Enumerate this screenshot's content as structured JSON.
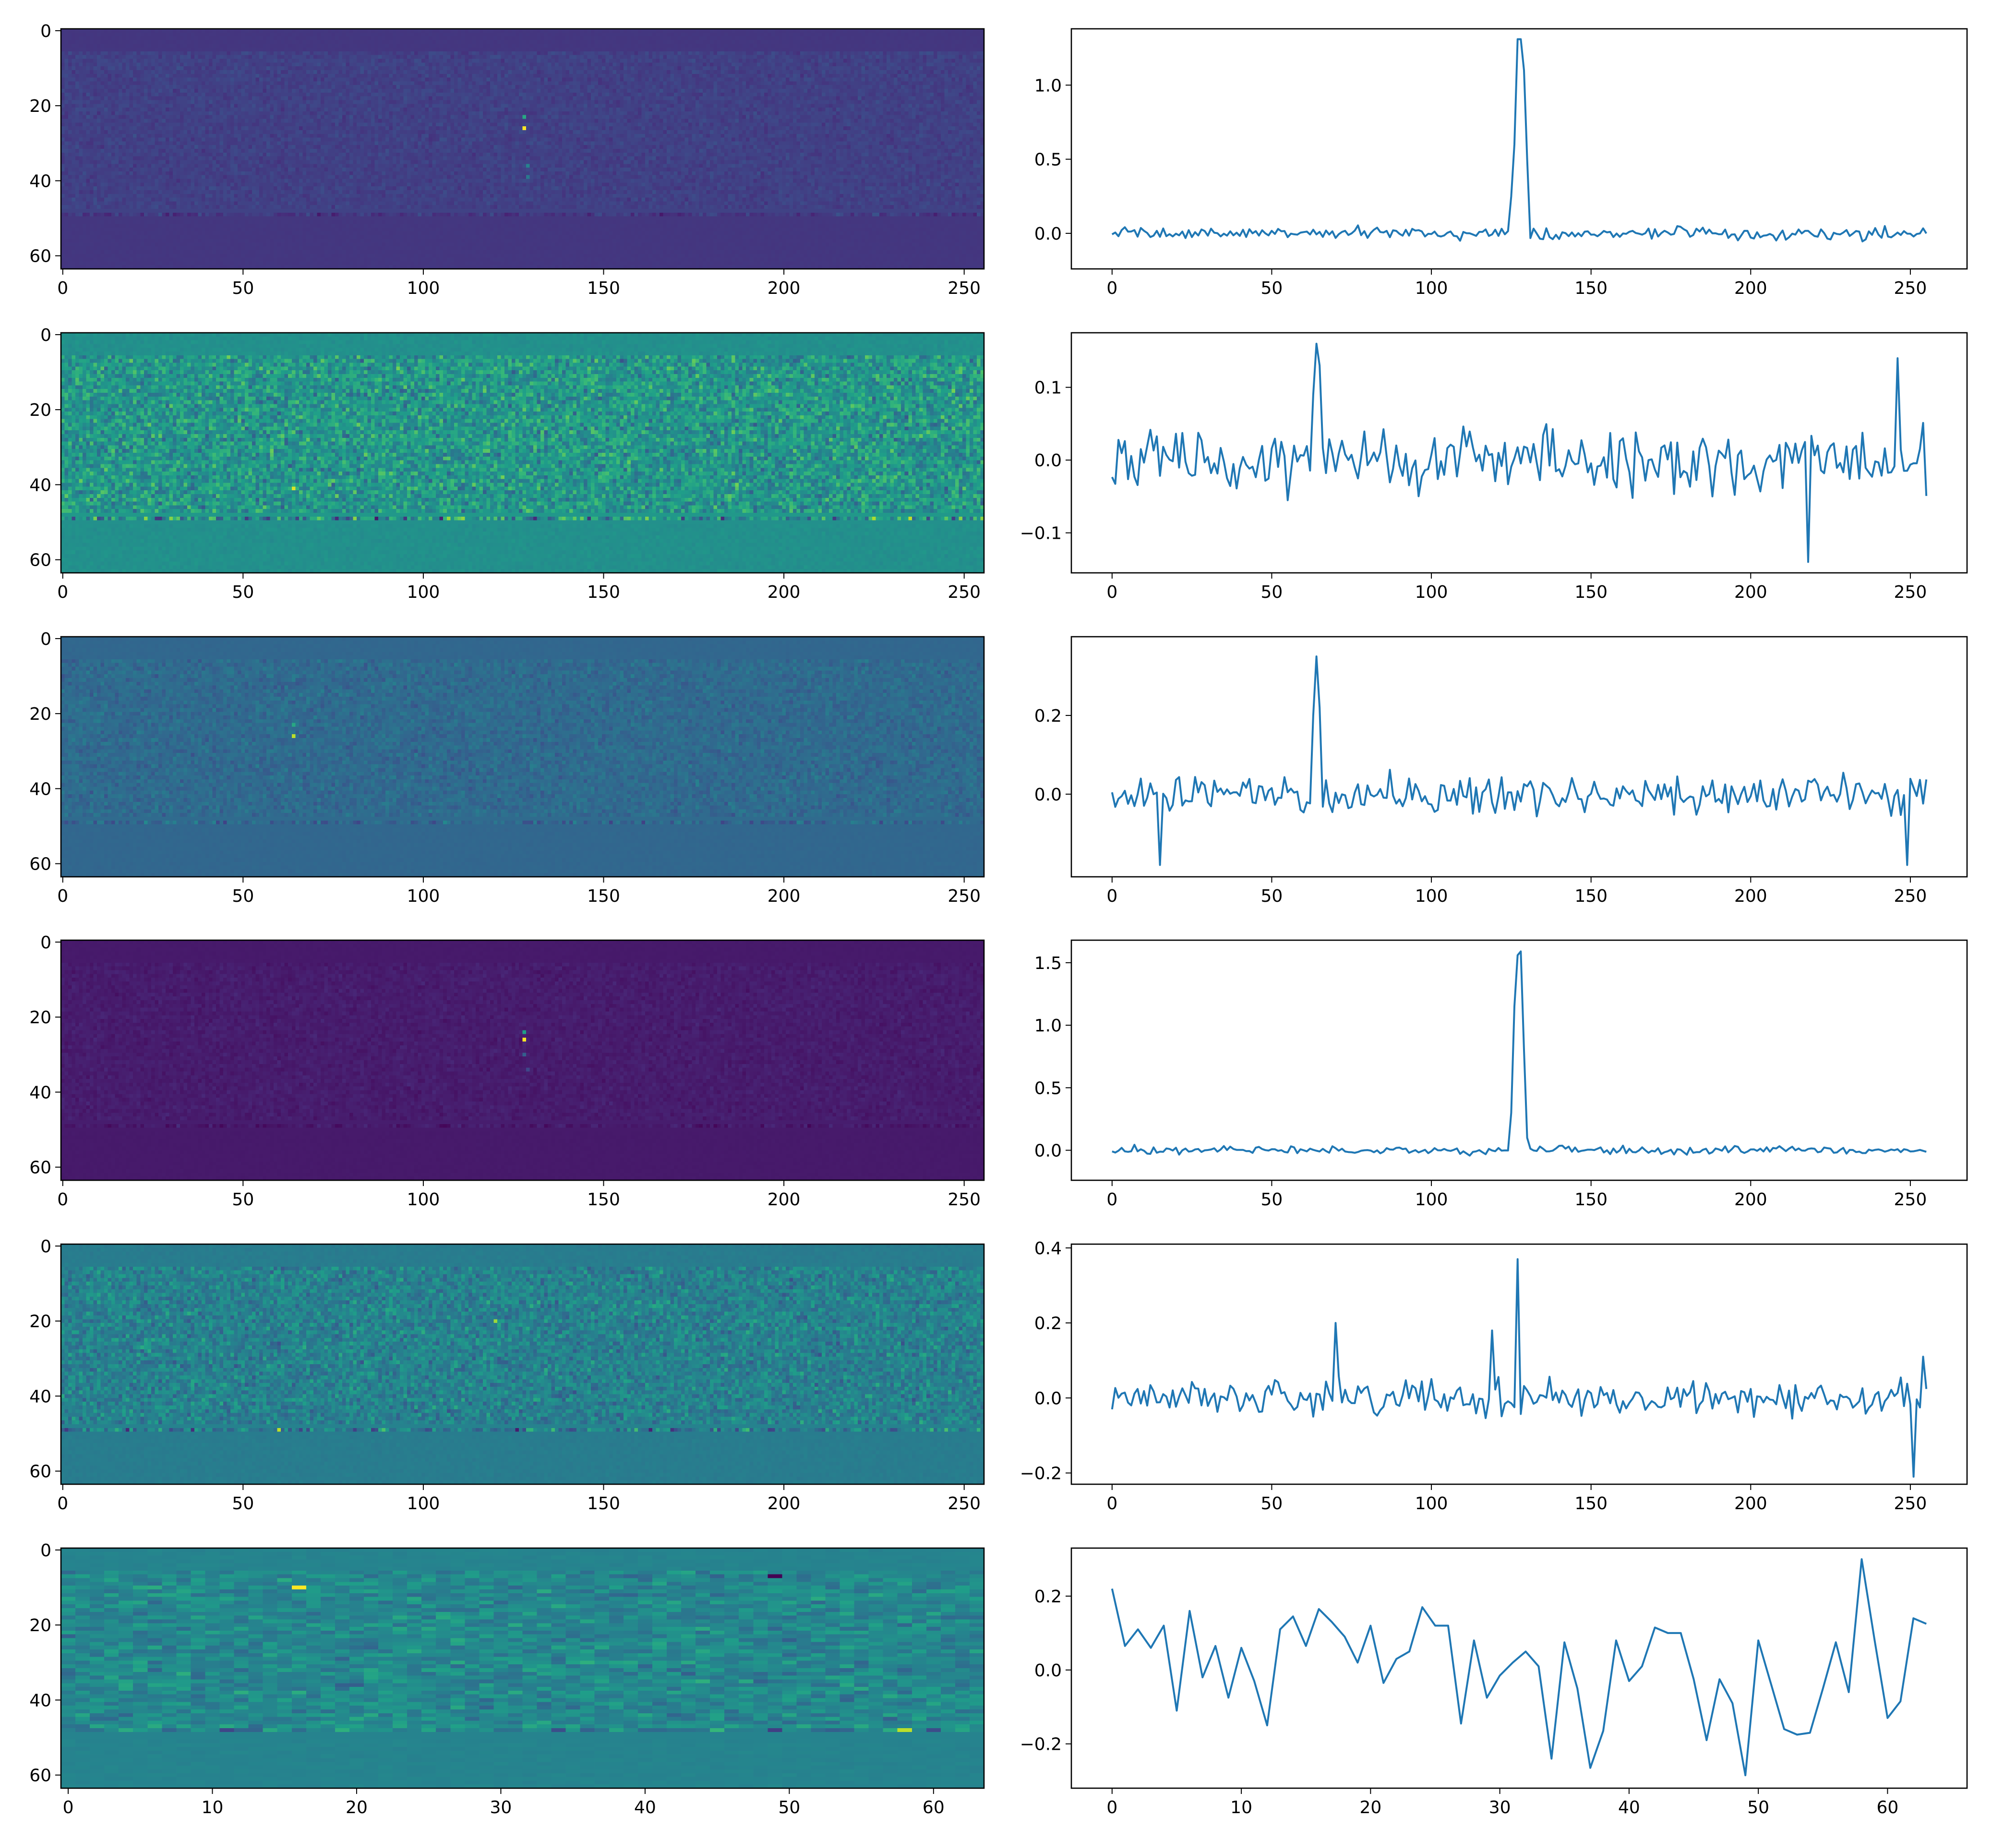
{
  "chart_data": [
    {
      "type": "heatmap",
      "panel": "heatmap",
      "row": 0,
      "colormap": "viridis",
      "xlim": [
        -0.5,
        255.5
      ],
      "ylim": [
        63.5,
        -0.5
      ],
      "xticks": [
        0,
        50,
        100,
        150,
        200,
        250
      ],
      "xtick_labels": [
        "0",
        "50",
        "100",
        "150",
        "200",
        "250"
      ],
      "yticks": [
        0,
        20,
        40,
        60
      ],
      "ytick_labels": [
        "0",
        "20",
        "40",
        "60"
      ],
      "n_cols": 256,
      "n_rows": 64,
      "base_level": 0.16,
      "noise_level": 0.06,
      "bright_band_level": 0.13,
      "dark_row": 49,
      "hotspots": [
        {
          "x": 128,
          "y": 26,
          "value": 1.0
        },
        {
          "x": 128,
          "y": 23,
          "value": 0.6
        },
        {
          "x": 129,
          "y": 36,
          "value": 0.45
        },
        {
          "x": 129,
          "y": 39,
          "value": 0.4
        }
      ]
    },
    {
      "type": "line",
      "panel": "line",
      "row": 0,
      "color": "#1f77b4",
      "xlim": [
        -12.75,
        267.75
      ],
      "ylim": [
        -0.24,
        1.38
      ],
      "xticks": [
        0,
        50,
        100,
        150,
        200,
        250
      ],
      "xtick_labels": [
        "0",
        "50",
        "100",
        "150",
        "200",
        "250"
      ],
      "yticks": [
        0,
        0.5,
        1.0
      ],
      "ytick_labels": [
        "0.0",
        "0.5",
        "1.0"
      ],
      "n_points": 256,
      "noise_amplitude": 0.06,
      "peaks": [
        {
          "x": 127,
          "y": 1.31
        },
        {
          "x": 128,
          "y": 1.31
        },
        {
          "x": 126,
          "y": 0.6
        },
        {
          "x": 129,
          "y": 1.1
        },
        {
          "x": 130,
          "y": 0.5
        },
        {
          "x": 125,
          "y": 0.25
        }
      ]
    },
    {
      "type": "heatmap",
      "panel": "heatmap",
      "row": 1,
      "colormap": "viridis",
      "xlim": [
        -0.5,
        255.5
      ],
      "ylim": [
        63.5,
        -0.5
      ],
      "xticks": [
        0,
        50,
        100,
        150,
        200,
        250
      ],
      "xtick_labels": [
        "0",
        "50",
        "100",
        "150",
        "200",
        "250"
      ],
      "yticks": [
        0,
        20,
        40,
        60
      ],
      "ytick_labels": [
        "0",
        "20",
        "40",
        "60"
      ],
      "n_cols": 256,
      "n_rows": 64,
      "base_level": 0.5,
      "noise_level": 0.28,
      "bright_band_level": 0.1,
      "dark_row": 49,
      "hotspots": [
        {
          "x": 64,
          "y": 41,
          "value": 0.95
        }
      ]
    },
    {
      "type": "line",
      "panel": "line",
      "row": 1,
      "color": "#1f77b4",
      "xlim": [
        -12.75,
        267.75
      ],
      "ylim": [
        -0.155,
        0.175
      ],
      "xticks": [
        0,
        50,
        100,
        150,
        200,
        250
      ],
      "xtick_labels": [
        "0",
        "50",
        "100",
        "150",
        "200",
        "250"
      ],
      "yticks": [
        -0.1,
        0,
        0.1
      ],
      "ytick_labels": [
        "−0.1",
        "0.0",
        "0.1"
      ],
      "n_points": 256,
      "noise_amplitude": 0.065,
      "peaks": [
        {
          "x": 64,
          "y": 0.16
        },
        {
          "x": 65,
          "y": 0.13
        },
        {
          "x": 63,
          "y": 0.09
        },
        {
          "x": 246,
          "y": 0.14
        },
        {
          "x": 218,
          "y": -0.14
        }
      ]
    },
    {
      "type": "heatmap",
      "panel": "heatmap",
      "row": 2,
      "colormap": "viridis",
      "xlim": [
        -0.5,
        255.5
      ],
      "ylim": [
        63.5,
        -0.5
      ],
      "xticks": [
        0,
        50,
        100,
        150,
        200,
        250
      ],
      "xtick_labels": [
        "0",
        "50",
        "100",
        "150",
        "200",
        "250"
      ],
      "yticks": [
        0,
        20,
        40,
        60
      ],
      "ytick_labels": [
        "0",
        "20",
        "40",
        "60"
      ],
      "n_cols": 256,
      "n_rows": 64,
      "base_level": 0.33,
      "noise_level": 0.1,
      "bright_band_level": 0.06,
      "dark_row": 49,
      "hotspots": [
        {
          "x": 64,
          "y": 26,
          "value": 0.9
        },
        {
          "x": 64,
          "y": 23,
          "value": 0.6
        }
      ]
    },
    {
      "type": "line",
      "panel": "line",
      "row": 2,
      "color": "#1f77b4",
      "xlim": [
        -12.75,
        267.75
      ],
      "ylim": [
        -0.21,
        0.4
      ],
      "xticks": [
        0,
        50,
        100,
        150,
        200,
        250
      ],
      "xtick_labels": [
        "0",
        "50",
        "100",
        "150",
        "200",
        "250"
      ],
      "yticks": [
        0,
        0.2
      ],
      "ytick_labels": [
        "0.0",
        "0.2"
      ],
      "n_points": 256,
      "noise_amplitude": 0.075,
      "peaks": [
        {
          "x": 64,
          "y": 0.35
        },
        {
          "x": 63,
          "y": 0.2
        },
        {
          "x": 65,
          "y": 0.22
        },
        {
          "x": 15,
          "y": -0.18
        },
        {
          "x": 249,
          "y": -0.18
        }
      ]
    },
    {
      "type": "heatmap",
      "panel": "heatmap",
      "row": 3,
      "colormap": "viridis",
      "xlim": [
        -0.5,
        255.5
      ],
      "ylim": [
        63.5,
        -0.5
      ],
      "xticks": [
        0,
        50,
        100,
        150,
        200,
        250
      ],
      "xtick_labels": [
        "0",
        "50",
        "100",
        "150",
        "200",
        "250"
      ],
      "yticks": [
        0,
        20,
        40,
        60
      ],
      "ytick_labels": [
        "0",
        "20",
        "40",
        "60"
      ],
      "n_cols": 256,
      "n_rows": 64,
      "base_level": 0.07,
      "noise_level": 0.04,
      "bright_band_level": 0.03,
      "dark_row": 49,
      "hotspots": [
        {
          "x": 128,
          "y": 26,
          "value": 1.0
        },
        {
          "x": 128,
          "y": 24,
          "value": 0.55
        },
        {
          "x": 128,
          "y": 30,
          "value": 0.3
        },
        {
          "x": 129,
          "y": 34,
          "value": 0.22
        }
      ]
    },
    {
      "type": "line",
      "panel": "line",
      "row": 3,
      "color": "#1f77b4",
      "xlim": [
        -12.75,
        267.75
      ],
      "ylim": [
        -0.24,
        1.68
      ],
      "xticks": [
        0,
        50,
        100,
        150,
        200,
        250
      ],
      "xtick_labels": [
        "0",
        "50",
        "100",
        "150",
        "200",
        "250"
      ],
      "yticks": [
        0,
        0.5,
        1.0,
        1.5
      ],
      "ytick_labels": [
        "0.0",
        "0.5",
        "1.0",
        "1.5"
      ],
      "n_points": 256,
      "noise_amplitude": 0.05,
      "peaks": [
        {
          "x": 127,
          "y": 1.56
        },
        {
          "x": 128,
          "y": 1.59
        },
        {
          "x": 126,
          "y": 1.15
        },
        {
          "x": 129,
          "y": 0.8
        },
        {
          "x": 125,
          "y": 0.3
        },
        {
          "x": 130,
          "y": 0.1
        }
      ]
    },
    {
      "type": "heatmap",
      "panel": "heatmap",
      "row": 4,
      "colormap": "viridis",
      "xlim": [
        -0.5,
        255.5
      ],
      "ylim": [
        63.5,
        -0.5
      ],
      "xticks": [
        0,
        50,
        100,
        150,
        200,
        250
      ],
      "xtick_labels": [
        "0",
        "50",
        "100",
        "150",
        "200",
        "250"
      ],
      "yticks": [
        0,
        20,
        40,
        60
      ],
      "ytick_labels": [
        "0",
        "20",
        "40",
        "60"
      ],
      "n_cols": 256,
      "n_rows": 64,
      "base_level": 0.42,
      "noise_level": 0.2,
      "bright_band_level": 0.08,
      "dark_row": 49,
      "hotspots": [
        {
          "x": 120,
          "y": 20,
          "value": 0.85
        },
        {
          "x": 60,
          "y": 49,
          "value": 0.9
        }
      ]
    },
    {
      "type": "line",
      "panel": "line",
      "row": 4,
      "color": "#1f77b4",
      "xlim": [
        -12.75,
        267.75
      ],
      "ylim": [
        -0.23,
        0.41
      ],
      "xticks": [
        0,
        50,
        100,
        150,
        200,
        250
      ],
      "xtick_labels": [
        "0",
        "50",
        "100",
        "150",
        "200",
        "250"
      ],
      "yticks": [
        -0.2,
        0,
        0.2,
        0.4
      ],
      "ytick_labels": [
        "−0.2",
        "0.0",
        "0.2",
        "0.4"
      ],
      "n_points": 256,
      "noise_amplitude": 0.07,
      "peaks": [
        {
          "x": 127,
          "y": 0.37
        },
        {
          "x": 119,
          "y": 0.18
        },
        {
          "x": 70,
          "y": 0.2
        },
        {
          "x": 251,
          "y": -0.21
        },
        {
          "x": 254,
          "y": 0.11
        }
      ]
    },
    {
      "type": "heatmap",
      "panel": "heatmap",
      "row": 5,
      "colormap": "viridis",
      "xlim": [
        -0.5,
        63.5
      ],
      "ylim": [
        63.5,
        -0.5
      ],
      "xticks": [
        0,
        10,
        20,
        30,
        40,
        50,
        60
      ],
      "xtick_labels": [
        "0",
        "10",
        "20",
        "30",
        "40",
        "50",
        "60"
      ],
      "yticks": [
        0,
        20,
        40,
        60
      ],
      "ytick_labels": [
        "0",
        "20",
        "40",
        "60"
      ],
      "n_cols": 64,
      "n_rows": 64,
      "base_level": 0.45,
      "noise_level": 0.18,
      "bright_band_level": 0.06,
      "dark_row": 48,
      "hotspots": [
        {
          "x": 16,
          "y": 10,
          "value": 1.0
        },
        {
          "x": 49,
          "y": 7,
          "value": 0.0
        },
        {
          "x": 58,
          "y": 48,
          "value": 0.9
        }
      ]
    },
    {
      "type": "line",
      "panel": "line",
      "row": 5,
      "color": "#1f77b4",
      "xlim": [
        -3.15,
        66.15
      ],
      "ylim": [
        -0.32,
        0.33
      ],
      "xticks": [
        0,
        10,
        20,
        30,
        40,
        50,
        60
      ],
      "xtick_labels": [
        "0",
        "10",
        "20",
        "30",
        "40",
        "50",
        "60"
      ],
      "yticks": [
        -0.2,
        0,
        0.2
      ],
      "ytick_labels": [
        "−0.2",
        "0.0",
        "0.2"
      ],
      "x": [
        0,
        1,
        2,
        3,
        4,
        5,
        6,
        7,
        8,
        9,
        10,
        11,
        12,
        13,
        14,
        15,
        16,
        17,
        18,
        19,
        20,
        21,
        22,
        23,
        24,
        25,
        26,
        27,
        28,
        29,
        30,
        31,
        32,
        33,
        34,
        35,
        36,
        37,
        38,
        39,
        40,
        41,
        42,
        43,
        44,
        45,
        46,
        47,
        48,
        49,
        50,
        51,
        52,
        53,
        54,
        55,
        56,
        57,
        58,
        59,
        60,
        61,
        62,
        63
      ],
      "y": [
        0.22,
        0.065,
        0.11,
        0.06,
        0.12,
        -0.11,
        0.16,
        -0.02,
        0.065,
        -0.075,
        0.06,
        -0.03,
        -0.15,
        0.11,
        0.145,
        0.065,
        0.165,
        0.13,
        0.09,
        0.02,
        0.12,
        -0.035,
        0.03,
        0.05,
        0.17,
        0.12,
        0.12,
        -0.145,
        0.08,
        -0.075,
        -0.015,
        0.02,
        0.05,
        0.01,
        -0.24,
        0.075,
        -0.05,
        -0.265,
        -0.165,
        0.08,
        -0.03,
        0.01,
        0.115,
        0.1,
        0.1,
        -0.025,
        -0.19,
        -0.025,
        -0.09,
        -0.285,
        0.08,
        -0.04,
        -0.16,
        -0.175,
        -0.17,
        -0.05,
        0.075,
        -0.06,
        0.3,
        0.08,
        -0.13,
        -0.085,
        0.14,
        0.125
      ]
    }
  ]
}
